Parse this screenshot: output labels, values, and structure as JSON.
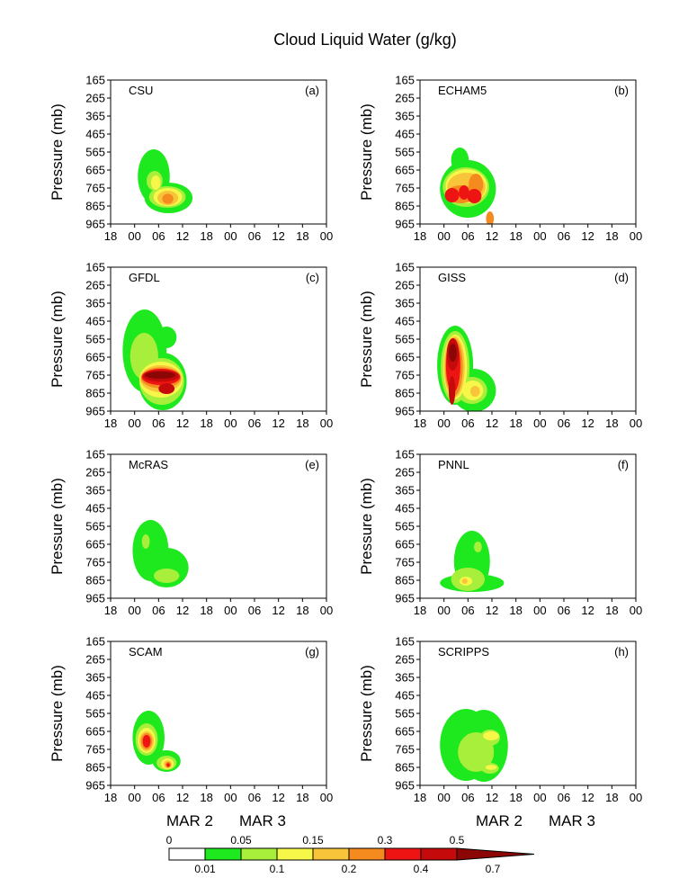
{
  "colors": {
    "levels": [
      "#ffffff",
      "#1ee81e",
      "#a7ef3a",
      "#f7f74a",
      "#f8c53a",
      "#f58a1e",
      "#ee1414",
      "#c40a0a",
      "#8c0606"
    ]
  },
  "chart_data": {
    "type": "heatmap",
    "title": "Cloud Liquid Water (g/kg)",
    "ylabel": "Pressure (mb)",
    "y_ticks": [
      "165",
      "265",
      "365",
      "465",
      "565",
      "665",
      "765",
      "865",
      "965"
    ],
    "x_ticks": [
      "18",
      "00",
      "06",
      "12",
      "18",
      "00",
      "06",
      "12",
      "18",
      "00"
    ],
    "x_dates": [
      "MAR 2",
      "MAR 3"
    ],
    "colorbar": {
      "upper_labels": [
        "0",
        "0.05",
        "0.15",
        "0.3",
        "0.5"
      ],
      "lower_labels": [
        "0.01",
        "0.1",
        "0.2",
        "0.4",
        "0.7"
      ]
    },
    "panels": [
      {
        "name": "CSU",
        "tag": "(a)",
        "blobs": [
          {
            "l": 1,
            "x": 10.8,
            "y": 700,
            "rx": 4.0,
            "ry": 150
          },
          {
            "l": 1,
            "x": 14.5,
            "y": 820,
            "rx": 6.0,
            "ry": 85
          },
          {
            "l": 2,
            "x": 11.0,
            "y": 725,
            "rx": 2.0,
            "ry": 55
          },
          {
            "l": 2,
            "x": 14.2,
            "y": 815,
            "rx": 4.6,
            "ry": 60
          },
          {
            "l": 3,
            "x": 11.3,
            "y": 735,
            "rx": 1.2,
            "ry": 40
          },
          {
            "l": 3,
            "x": 14.3,
            "y": 815,
            "rx": 3.6,
            "ry": 50
          },
          {
            "l": 4,
            "x": 14.3,
            "y": 820,
            "rx": 2.6,
            "ry": 40
          },
          {
            "l": 5,
            "x": 14.3,
            "y": 825,
            "rx": 1.4,
            "ry": 28
          }
        ]
      },
      {
        "name": "ECHAM5",
        "tag": "(b)",
        "blobs": [
          {
            "l": 1,
            "x": 10.0,
            "y": 610,
            "rx": 2.2,
            "ry": 70
          },
          {
            "l": 1,
            "x": 12.0,
            "y": 770,
            "rx": 7.0,
            "ry": 160
          },
          {
            "l": 2,
            "x": 11.5,
            "y": 760,
            "rx": 5.8,
            "ry": 110
          },
          {
            "l": 3,
            "x": 11.6,
            "y": 755,
            "rx": 5.2,
            "ry": 95
          },
          {
            "l": 4,
            "x": 11.6,
            "y": 760,
            "rx": 4.8,
            "ry": 80
          },
          {
            "l": 5,
            "x": 10.2,
            "y": 800,
            "rx": 3.6,
            "ry": 50
          },
          {
            "l": 5,
            "x": 14.0,
            "y": 745,
            "rx": 1.8,
            "ry": 60
          },
          {
            "l": 6,
            "x": 8.0,
            "y": 805,
            "rx": 1.8,
            "ry": 40
          },
          {
            "l": 6,
            "x": 11.0,
            "y": 790,
            "rx": 1.3,
            "ry": 40
          },
          {
            "l": 6,
            "x": 13.6,
            "y": 810,
            "rx": 1.8,
            "ry": 40
          },
          {
            "l": 5,
            "x": 17.5,
            "y": 935,
            "rx": 1.0,
            "ry": 40
          }
        ]
      },
      {
        "name": "GFDL",
        "tag": "(c)",
        "blobs": [
          {
            "l": 1,
            "x": 8.5,
            "y": 630,
            "rx": 5.5,
            "ry": 230
          },
          {
            "l": 1,
            "x": 13.0,
            "y": 800,
            "rx": 6.0,
            "ry": 160
          },
          {
            "l": 1,
            "x": 14.0,
            "y": 555,
            "rx": 2.5,
            "ry": 60
          },
          {
            "l": 2,
            "x": 8.4,
            "y": 660,
            "rx": 3.5,
            "ry": 130
          },
          {
            "l": 2,
            "x": 12.8,
            "y": 800,
            "rx": 5.6,
            "ry": 130
          },
          {
            "l": 3,
            "x": 12.6,
            "y": 790,
            "rx": 5.4,
            "ry": 100
          },
          {
            "l": 4,
            "x": 12.6,
            "y": 785,
            "rx": 5.2,
            "ry": 75
          },
          {
            "l": 5,
            "x": 12.6,
            "y": 780,
            "rx": 5.0,
            "ry": 58
          },
          {
            "l": 6,
            "x": 12.6,
            "y": 775,
            "rx": 4.8,
            "ry": 45
          },
          {
            "l": 7,
            "x": 12.6,
            "y": 770,
            "rx": 4.5,
            "ry": 32
          },
          {
            "l": 8,
            "x": 12.4,
            "y": 765,
            "rx": 3.8,
            "ry": 20
          },
          {
            "l": 7,
            "x": 14.0,
            "y": 840,
            "rx": 2.0,
            "ry": 30
          }
        ]
      },
      {
        "name": "GISS",
        "tag": "(d)",
        "blobs": [
          {
            "l": 1,
            "x": 8.8,
            "y": 710,
            "rx": 4.5,
            "ry": 220
          },
          {
            "l": 1,
            "x": 13.5,
            "y": 850,
            "rx": 5.5,
            "ry": 120
          },
          {
            "l": 2,
            "x": 8.8,
            "y": 720,
            "rx": 3.6,
            "ry": 200
          },
          {
            "l": 2,
            "x": 13.0,
            "y": 850,
            "rx": 3.8,
            "ry": 75
          },
          {
            "l": 3,
            "x": 8.8,
            "y": 720,
            "rx": 3.0,
            "ry": 180
          },
          {
            "l": 3,
            "x": 13.2,
            "y": 850,
            "rx": 2.6,
            "ry": 55
          },
          {
            "l": 4,
            "x": 8.6,
            "y": 720,
            "rx": 2.6,
            "ry": 170
          },
          {
            "l": 4,
            "x": 13.8,
            "y": 855,
            "rx": 1.2,
            "ry": 30
          },
          {
            "l": 5,
            "x": 8.5,
            "y": 720,
            "rx": 2.2,
            "ry": 160
          },
          {
            "l": 6,
            "x": 8.3,
            "y": 710,
            "rx": 1.8,
            "ry": 150
          },
          {
            "l": 7,
            "x": 8.2,
            "y": 650,
            "rx": 1.5,
            "ry": 90
          },
          {
            "l": 7,
            "x": 8.0,
            "y": 850,
            "rx": 0.8,
            "ry": 80
          },
          {
            "l": 8,
            "x": 8.2,
            "y": 640,
            "rx": 1.0,
            "ry": 50
          }
        ]
      },
      {
        "name": "McRAS",
        "tag": "(e)",
        "blobs": [
          {
            "l": 1,
            "x": 10.0,
            "y": 700,
            "rx": 4.5,
            "ry": 170
          },
          {
            "l": 1,
            "x": 14.0,
            "y": 795,
            "rx": 5.5,
            "ry": 110
          },
          {
            "l": 2,
            "x": 8.8,
            "y": 650,
            "rx": 1.0,
            "ry": 40
          },
          {
            "l": 2,
            "x": 14.0,
            "y": 840,
            "rx": 3.2,
            "ry": 40
          }
        ]
      },
      {
        "name": "PNNL",
        "tag": "(f)",
        "blobs": [
          {
            "l": 1,
            "x": 13.0,
            "y": 760,
            "rx": 4.5,
            "ry": 170
          },
          {
            "l": 1,
            "x": 13.0,
            "y": 880,
            "rx": 8.0,
            "ry": 50
          },
          {
            "l": 2,
            "x": 12.0,
            "y": 860,
            "rx": 4.2,
            "ry": 65
          },
          {
            "l": 2,
            "x": 14.5,
            "y": 680,
            "rx": 1.0,
            "ry": 30
          },
          {
            "l": 3,
            "x": 11.5,
            "y": 870,
            "rx": 1.6,
            "ry": 25
          },
          {
            "l": 4,
            "x": 11.2,
            "y": 870,
            "rx": 0.7,
            "ry": 15
          }
        ]
      },
      {
        "name": "SCAM",
        "tag": "(g)",
        "blobs": [
          {
            "l": 1,
            "x": 9.5,
            "y": 700,
            "rx": 4.0,
            "ry": 150
          },
          {
            "l": 1,
            "x": 14.0,
            "y": 830,
            "rx": 3.5,
            "ry": 60
          },
          {
            "l": 2,
            "x": 9.0,
            "y": 710,
            "rx": 2.8,
            "ry": 90
          },
          {
            "l": 2,
            "x": 14.0,
            "y": 840,
            "rx": 2.5,
            "ry": 40
          },
          {
            "l": 3,
            "x": 9.0,
            "y": 715,
            "rx": 2.2,
            "ry": 70
          },
          {
            "l": 3,
            "x": 14.2,
            "y": 845,
            "rx": 1.6,
            "ry": 30
          },
          {
            "l": 4,
            "x": 9.0,
            "y": 720,
            "rx": 1.8,
            "ry": 55
          },
          {
            "l": 4,
            "x": 14.3,
            "y": 848,
            "rx": 1.0,
            "ry": 22
          },
          {
            "l": 5,
            "x": 9.0,
            "y": 720,
            "rx": 1.4,
            "ry": 45
          },
          {
            "l": 5,
            "x": 14.4,
            "y": 850,
            "rx": 0.7,
            "ry": 16
          },
          {
            "l": 6,
            "x": 9.0,
            "y": 720,
            "rx": 1.0,
            "ry": 35
          },
          {
            "l": 6,
            "x": 14.4,
            "y": 852,
            "rx": 0.4,
            "ry": 10
          }
        ]
      },
      {
        "name": "SCRIPPS",
        "tag": "(h)",
        "blobs": [
          {
            "l": 1,
            "x": 11.5,
            "y": 740,
            "rx": 6.5,
            "ry": 200
          },
          {
            "l": 1,
            "x": 16.0,
            "y": 745,
            "rx": 6.0,
            "ry": 200
          },
          {
            "l": 2,
            "x": 14.0,
            "y": 780,
            "rx": 4.5,
            "ry": 110
          },
          {
            "l": 2,
            "x": 17.5,
            "y": 700,
            "rx": 2.5,
            "ry": 45
          },
          {
            "l": 3,
            "x": 17.8,
            "y": 690,
            "rx": 2.0,
            "ry": 25
          },
          {
            "l": 2,
            "x": 17.5,
            "y": 870,
            "rx": 2.2,
            "ry": 30
          },
          {
            "l": 3,
            "x": 17.8,
            "y": 865,
            "rx": 1.4,
            "ry": 14
          }
        ]
      }
    ]
  }
}
